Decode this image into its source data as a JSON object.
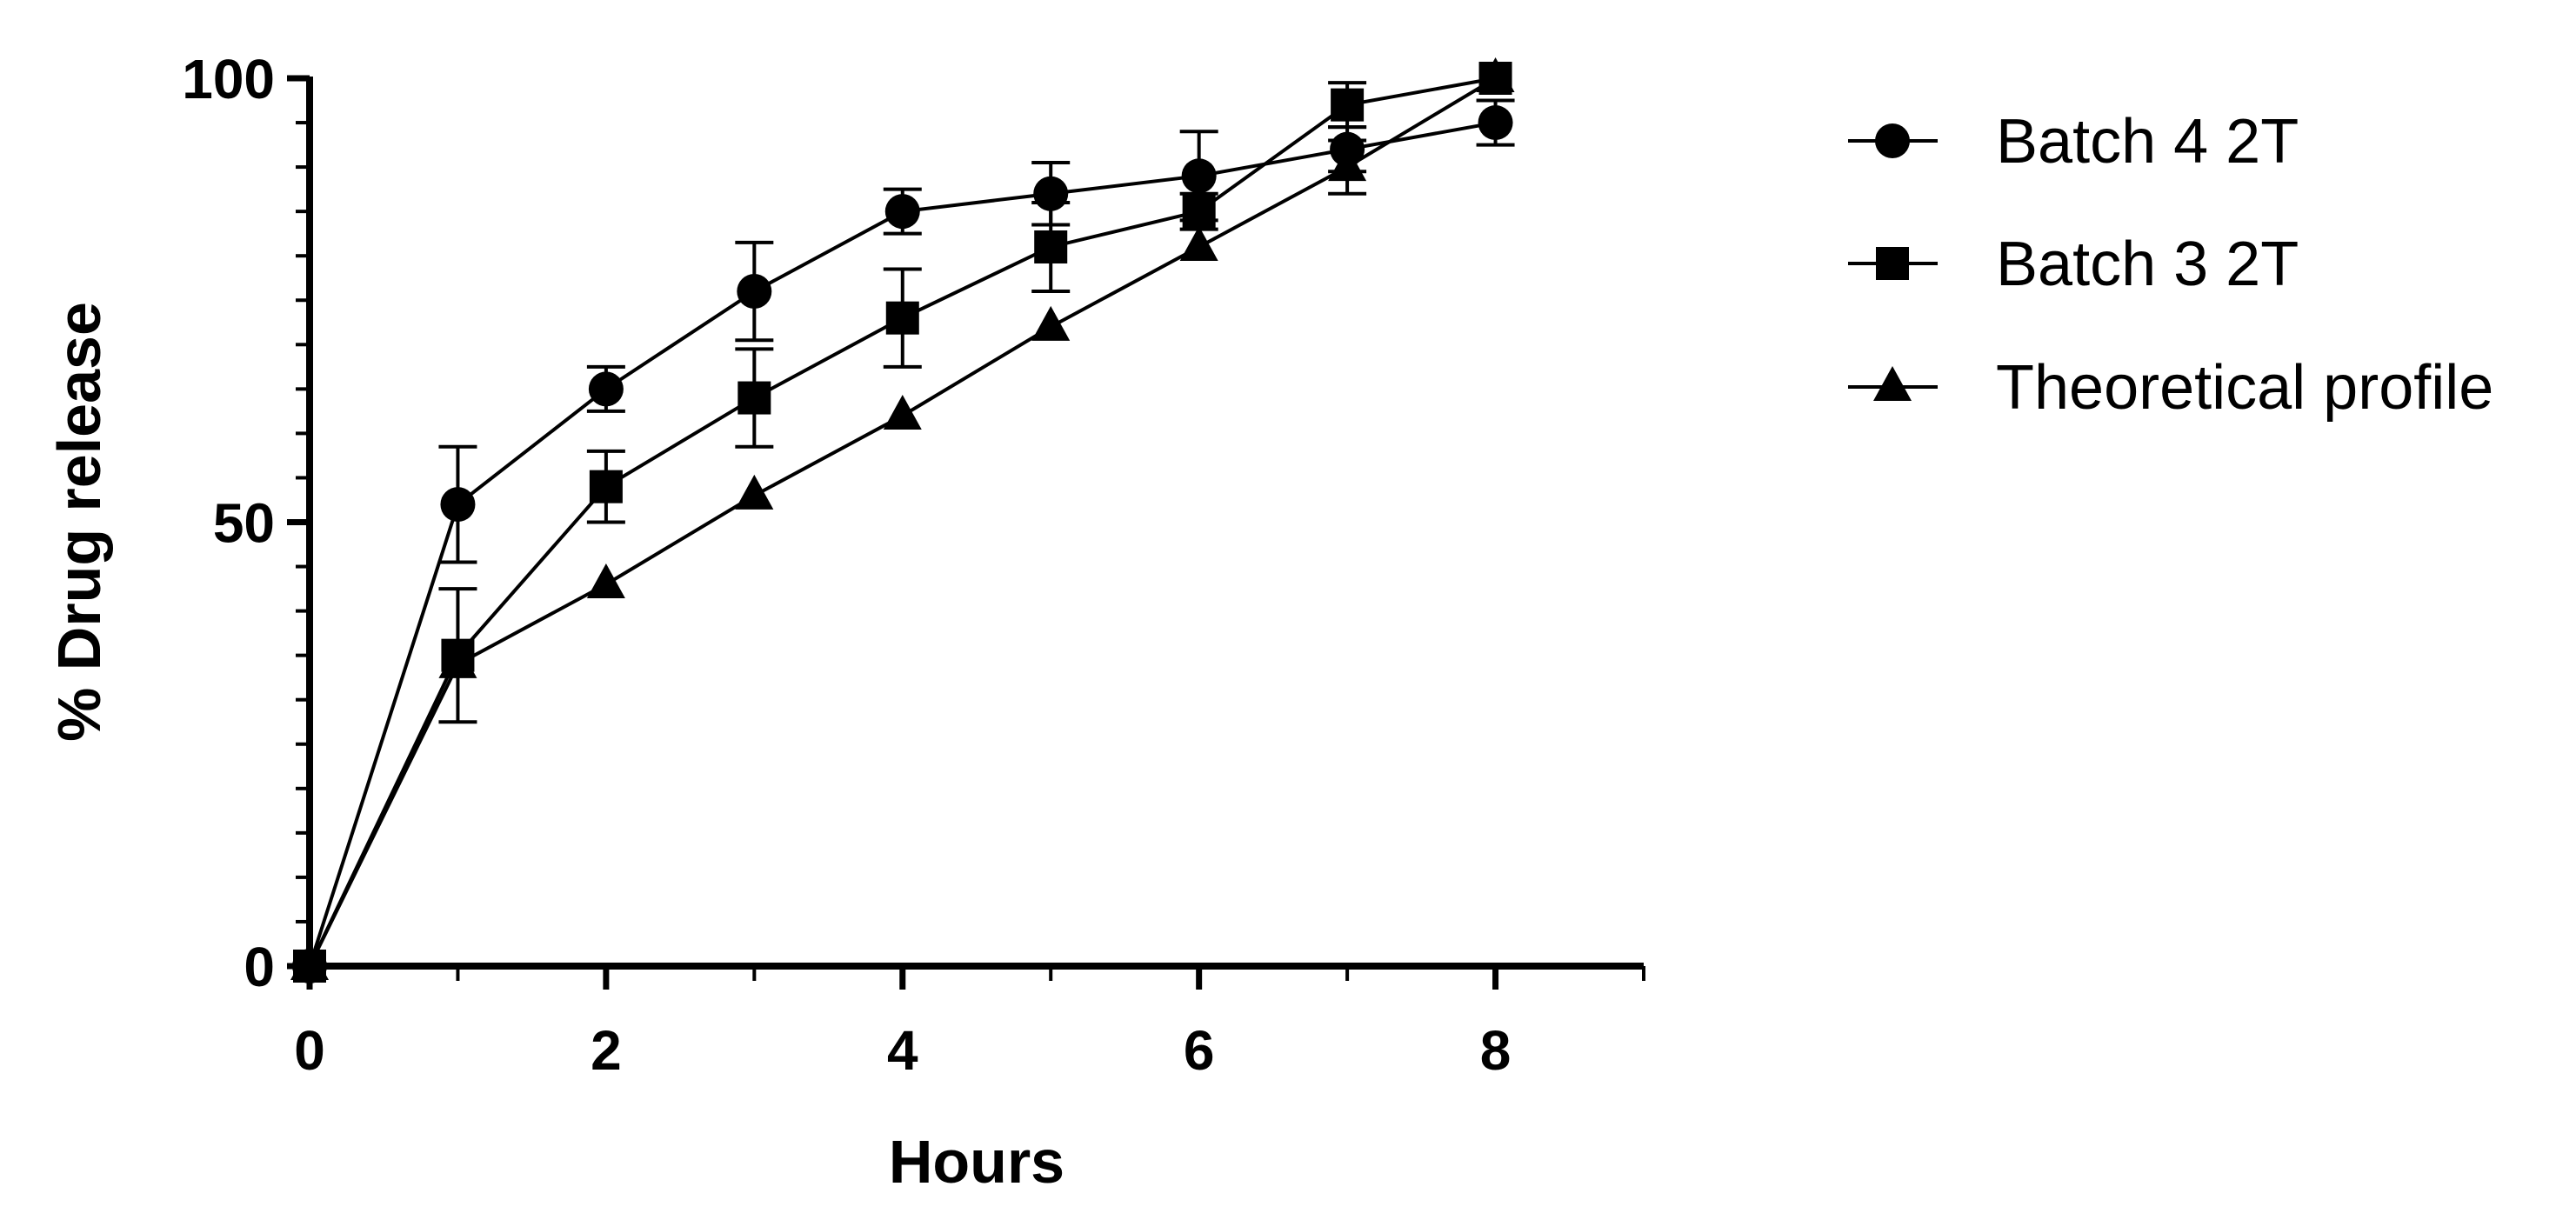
{
  "chart_data": {
    "type": "line",
    "title": "",
    "xlabel": "Hours",
    "ylabel": "% Drug release",
    "xlim": [
      0,
      9
    ],
    "ylim": [
      0,
      100
    ],
    "x_ticks": [
      "0",
      "2",
      "4",
      "6",
      "8"
    ],
    "y_ticks": [
      "0",
      "50",
      "100"
    ],
    "x_minor_step": 1,
    "y_minor_step": 5,
    "grid": false,
    "legend_position": "right",
    "color": "#000000",
    "x": [
      0,
      1,
      2,
      3,
      4,
      5,
      6,
      7,
      8
    ],
    "series": [
      {
        "name": "Batch 4 2T",
        "marker": "circle",
        "values": [
          0,
          52,
          65,
          76,
          85,
          87,
          89,
          92,
          95
        ],
        "error": [
          0,
          6.5,
          2.5,
          5.5,
          2.5,
          3.5,
          5,
          2.5,
          2.5
        ]
      },
      {
        "name": "Batch 3 2T",
        "marker": "square",
        "values": [
          0,
          35,
          54,
          64,
          73,
          81,
          85,
          97,
          100
        ],
        "error": [
          0,
          7.5,
          4,
          5.5,
          5.5,
          5,
          2,
          2.5,
          0
        ]
      },
      {
        "name": "Theoretical profile",
        "marker": "triangle",
        "values": [
          0,
          34,
          43,
          53,
          62,
          72,
          81,
          90,
          100
        ],
        "error": [
          0,
          0,
          0,
          0,
          0,
          0,
          0,
          3,
          0
        ]
      }
    ]
  }
}
